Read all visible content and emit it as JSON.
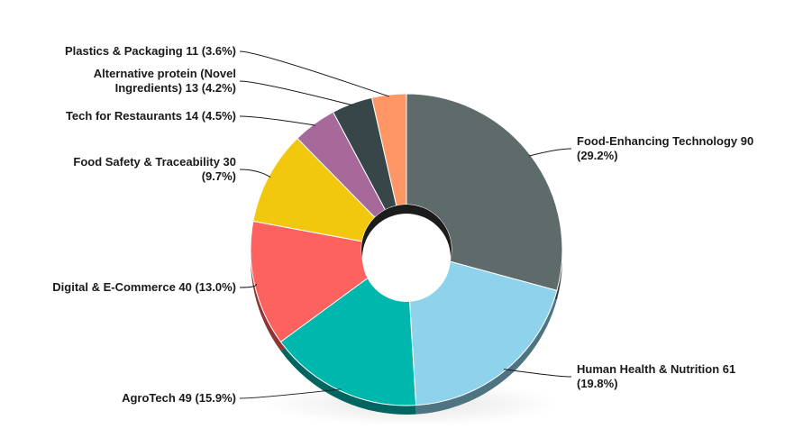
{
  "chart_data": {
    "type": "pie",
    "variant": "donut-3d",
    "title": "",
    "series": [
      {
        "name": "Food-Enhancing Technology",
        "value": 90,
        "percent": "29.2%",
        "color": "#5f6b6b",
        "label_lines": [
          "Food-Enhancing Technology 90",
          "(29.2%)"
        ]
      },
      {
        "name": "Human Health & Nutrition",
        "value": 61,
        "percent": "19.8%",
        "color": "#8ed3eb",
        "label_lines": [
          "Human Health & Nutrition 61",
          "(19.8%)"
        ]
      },
      {
        "name": "AgroTech",
        "value": 49,
        "percent": "15.9%",
        "color": "#00b7ae",
        "label_lines": [
          "AgroTech 49 (15.9%)"
        ]
      },
      {
        "name": "Digital & E-Commerce",
        "value": 40,
        "percent": "13.0%",
        "color": "#fd625e",
        "label_lines": [
          "Digital & E-Commerce 40 (13.0%)"
        ]
      },
      {
        "name": "Food Safety & Traceability",
        "value": 30,
        "percent": "9.7%",
        "color": "#f2c80f",
        "label_lines": [
          "Food Safety & Traceability 30",
          "(9.7%)"
        ]
      },
      {
        "name": "Tech for Restaurants",
        "value": 14,
        "percent": "4.5%",
        "color": "#a66999",
        "label_lines": [
          "Tech for Restaurants 14 (4.5%)"
        ]
      },
      {
        "name": "Alternative protein (Novel Ingredients)",
        "value": 13,
        "percent": "4.2%",
        "color": "#374649",
        "label_lines": [
          "Alternative protein (Novel",
          "Ingredients) 13 (4.2%)"
        ]
      },
      {
        "name": "Plastics & Packaging",
        "value": 11,
        "percent": "3.6%",
        "color": "#fe9666",
        "label_lines": [
          "Plastics & Packaging 11 (3.6%)"
        ]
      }
    ]
  }
}
